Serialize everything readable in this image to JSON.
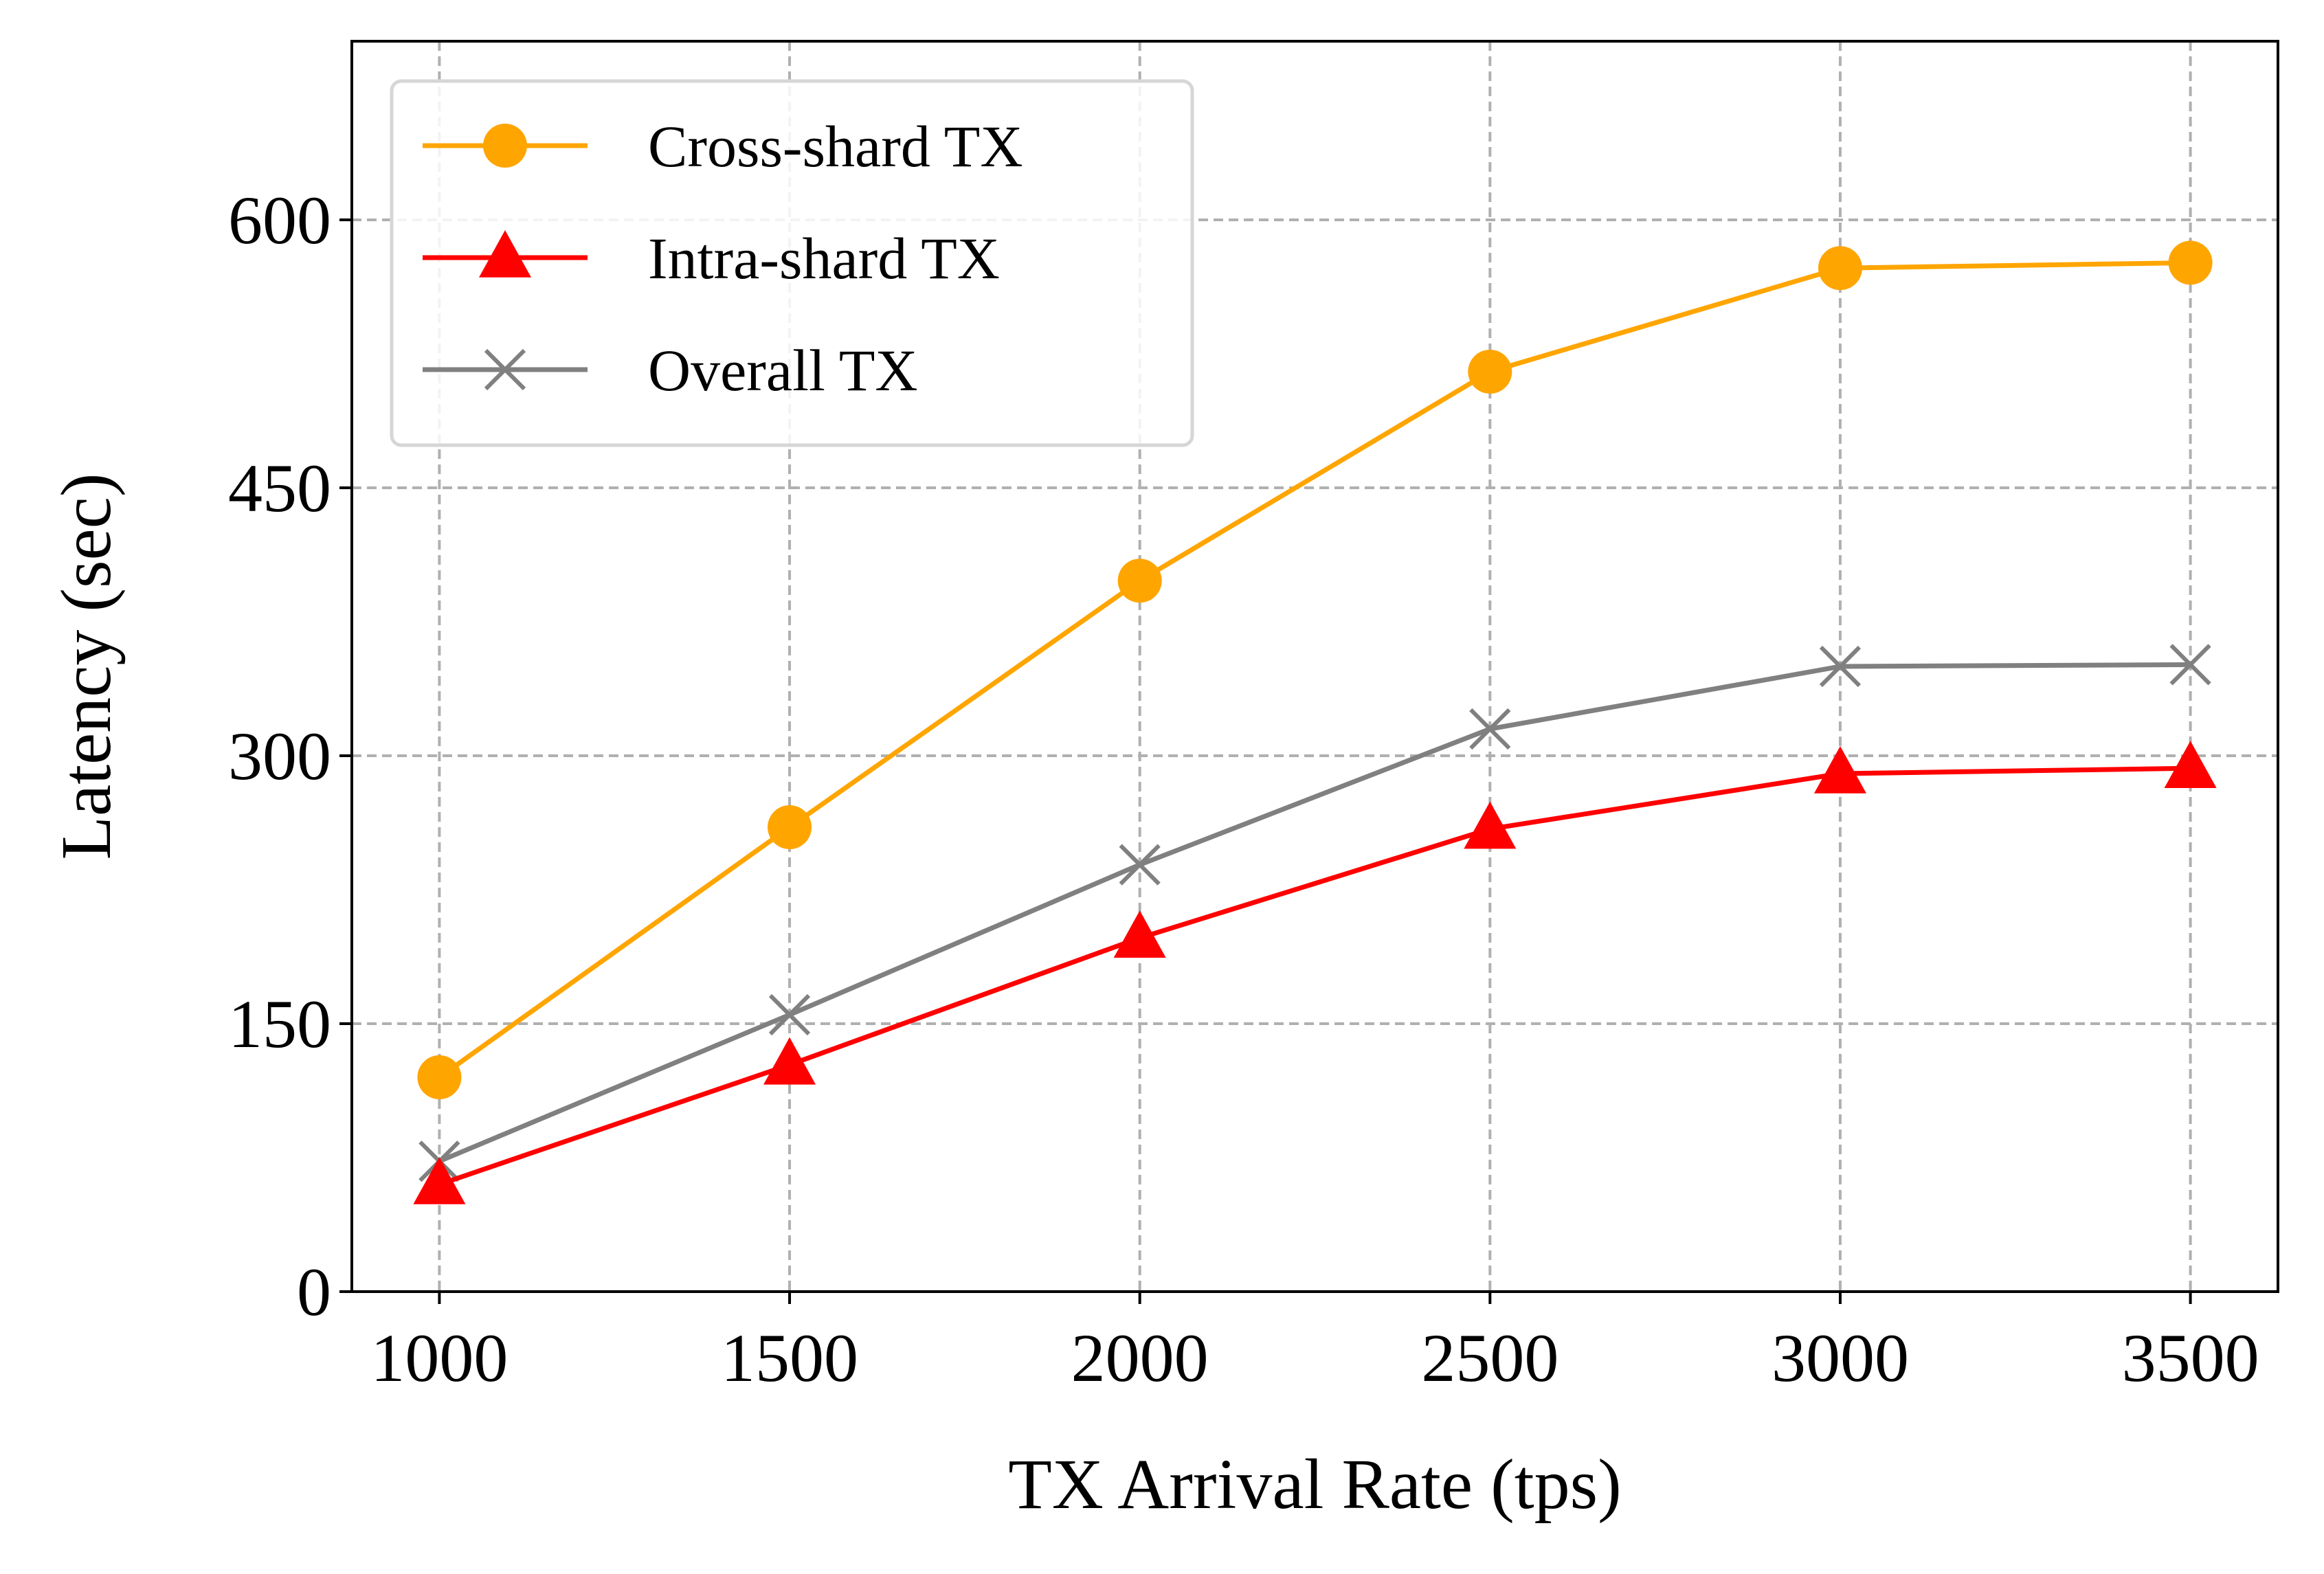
{
  "chart_data": {
    "type": "line",
    "x": [
      1000,
      1500,
      2000,
      2500,
      3000,
      3500
    ],
    "x_ticks": [
      "1000",
      "1500",
      "2000",
      "2500",
      "3000",
      "3500"
    ],
    "y_ticks": [
      "0",
      "150",
      "300",
      "450",
      "600"
    ],
    "xlabel": "TX Arrival Rate (tps)",
    "ylabel": "Latency (sec)",
    "xlim": [
      875,
      3625
    ],
    "ylim": [
      0,
      700
    ],
    "grid": true,
    "legend_position": "top-left",
    "series": [
      {
        "name": "Cross-shard TX",
        "marker": "circle",
        "color": "#FFA500",
        "values": [
          120,
          260,
          398,
          515,
          573,
          576
        ]
      },
      {
        "name": "Intra-shard TX",
        "marker": "triangle",
        "color": "#FF0000",
        "values": [
          60,
          127,
          198,
          259,
          290,
          293
        ]
      },
      {
        "name": "Overall TX",
        "marker": "x",
        "color": "#808080",
        "values": [
          73,
          155,
          239,
          315,
          350,
          351
        ]
      }
    ]
  }
}
